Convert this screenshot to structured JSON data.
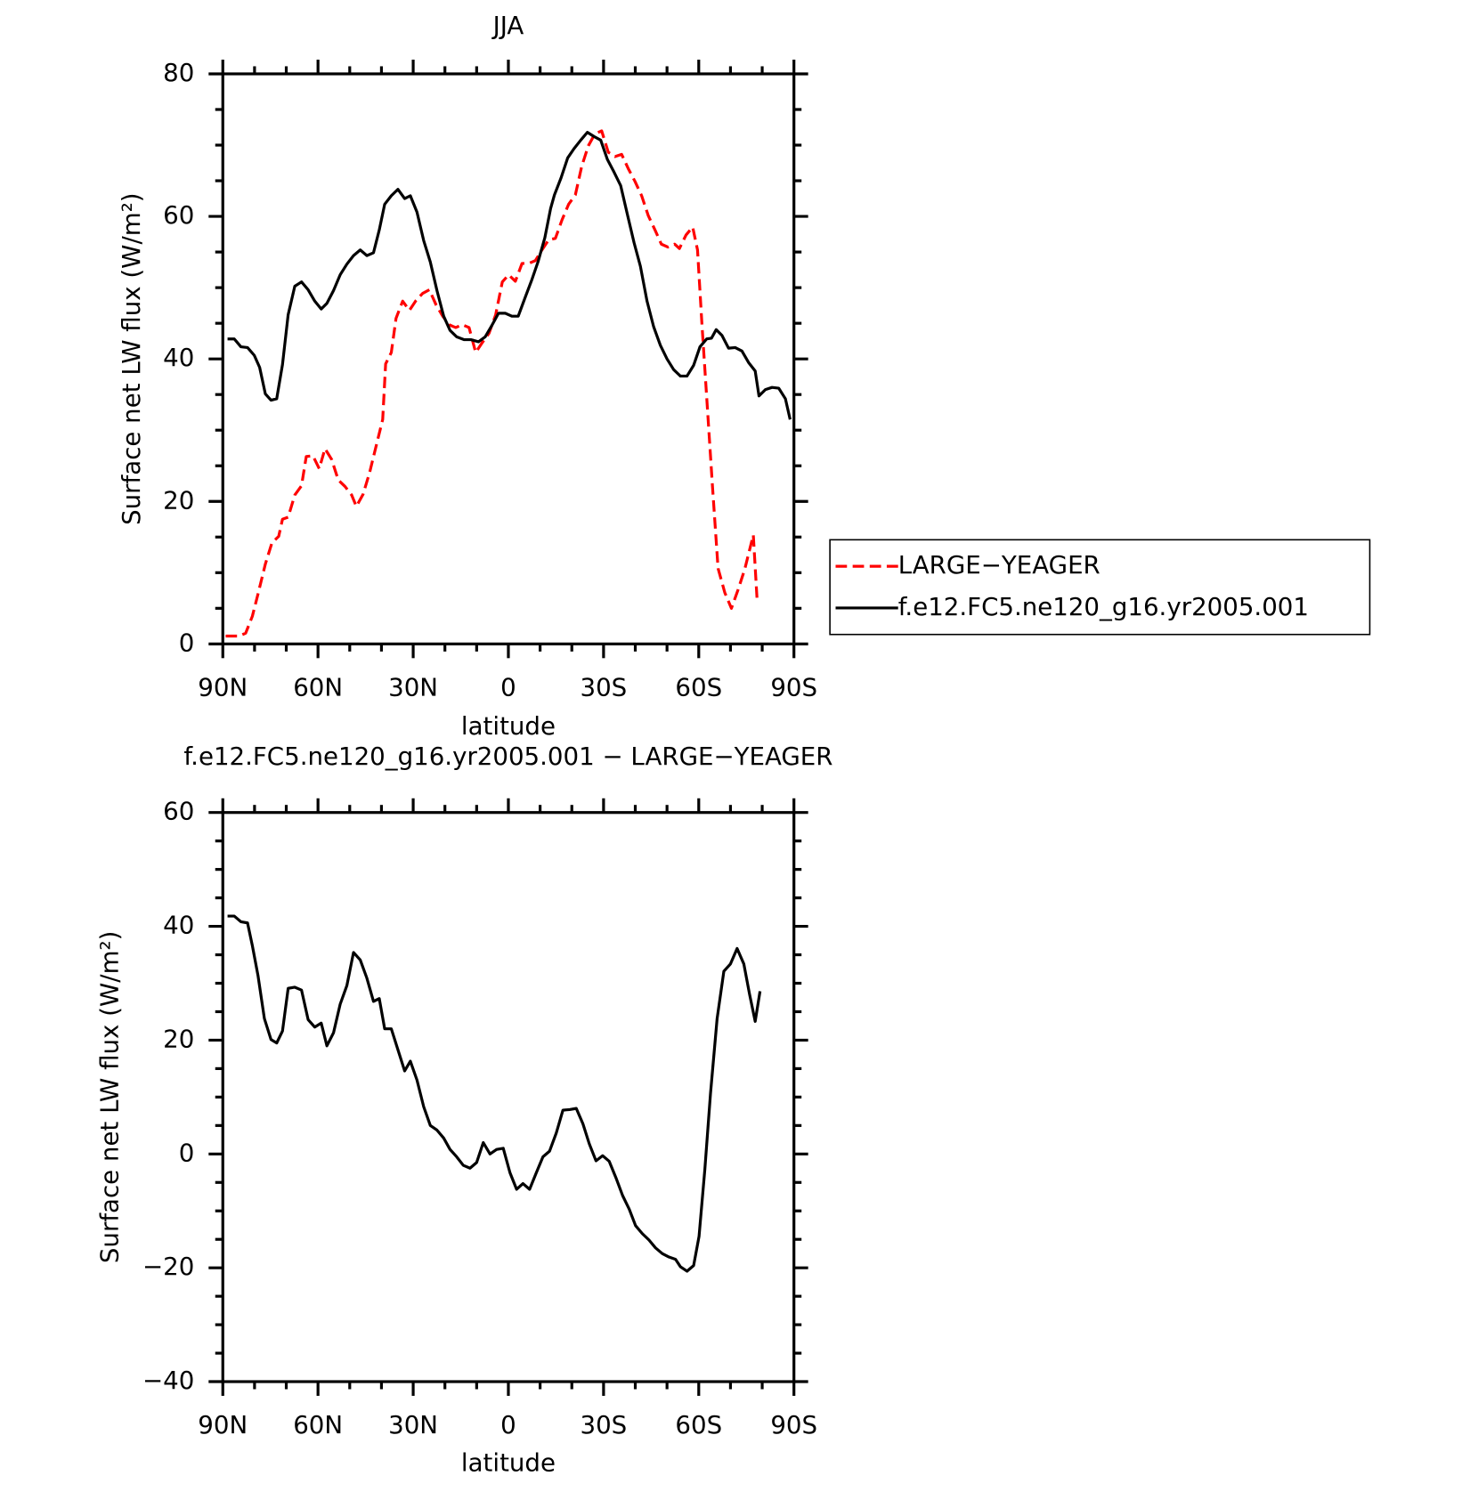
{
  "chart_data": [
    {
      "type": "line",
      "title": "JJA",
      "xlabel": "latitude",
      "ylabel": "Surface net LW flux (W/m²)",
      "xlim": [
        90,
        -90
      ],
      "xticks": [
        {
          "value": 90,
          "label": "90N"
        },
        {
          "value": 60,
          "label": "60N"
        },
        {
          "value": 30,
          "label": "30N"
        },
        0,
        {
          "value": -30,
          "label": "30S"
        },
        {
          "value": -60,
          "label": "60S"
        },
        {
          "value": -90,
          "label": "90S"
        }
      ],
      "ylim": [
        0,
        80
      ],
      "yticks": [
        0,
        20,
        40,
        60,
        80
      ],
      "legend": "right",
      "series": [
        {
          "name": "LARGE−YEAGER",
          "color": "#ff0000",
          "linestyle": "dashed",
          "x": [
            89.1,
            87,
            84.9,
            82.8,
            80.7,
            78.7,
            76.6,
            74.5,
            72.4,
            71.2,
            69.4,
            67.3,
            65.2,
            63.7,
            61.6,
            59.6,
            57.8,
            55.7,
            53.6,
            51.5,
            49.4,
            47.9,
            45.8,
            43.7,
            41.6,
            39.6,
            38.7,
            36.9,
            35.4,
            33.3,
            31.2,
            29.1,
            27,
            24.9,
            22.8,
            20.7,
            18.7,
            16.6,
            14.5,
            12.4,
            10.3,
            8.2,
            6.1,
            4,
            1.9,
            -0.1,
            -2.2,
            -4.3,
            -6.4,
            -8.5,
            -10.6,
            -12.7,
            -14.8,
            -16.9,
            -19,
            -21.1,
            -23.1,
            -25.2,
            -27.3,
            -29.4,
            -31.5,
            -33.6,
            -35.7,
            -37.8,
            -39.9,
            -42,
            -44.1,
            -46.2,
            -48.2,
            -50.3,
            -52.4,
            -53.9,
            -56,
            -58.1,
            -59.6,
            -61,
            -62.5,
            -64.3,
            -66.1,
            -68.2,
            -70.3,
            -72.4,
            -74.5,
            -77.2,
            -78.4
          ],
          "values": [
            1.1,
            1.1,
            1.1,
            1.5,
            3.9,
            7.4,
            11.2,
            14.2,
            15.1,
            17.5,
            17.8,
            20.9,
            22.2,
            26.3,
            26.4,
            24.6,
            27.4,
            25.9,
            23,
            22.1,
            20.9,
            19.3,
            21,
            24.1,
            27.9,
            31.5,
            39.3,
            40.9,
            45.7,
            48.1,
            46.8,
            48.2,
            49.2,
            49.7,
            47.6,
            46,
            44.8,
            44.4,
            44.8,
            44.4,
            40.9,
            42.3,
            43.6,
            46.2,
            50.8,
            51.8,
            50.9,
            53.4,
            53.4,
            53.8,
            55.3,
            56.7,
            56.9,
            59.5,
            61.7,
            63,
            67,
            69.9,
            71.6,
            72,
            69,
            68.4,
            68.7,
            66.7,
            64.9,
            62.9,
            60.1,
            58.1,
            56.1,
            55.7,
            56.1,
            55.5,
            57.4,
            58.5,
            55.3,
            44.8,
            34.6,
            22.3,
            10.6,
            7.2,
            5,
            7.6,
            10.5,
            15.3,
            6.2
          ]
        },
        {
          "name": "f.e12.FC5.ne120_g16.yr2005.001",
          "color": "#000000",
          "linestyle": "solid",
          "x": [
            88.5,
            86.4,
            84.3,
            82.2,
            80.1,
            78.4,
            76.6,
            74.8,
            73,
            71.2,
            69.4,
            67.3,
            65.2,
            63.1,
            61,
            59,
            57.2,
            55.1,
            53,
            50.9,
            48.8,
            46.7,
            44.6,
            42.5,
            40.7,
            39,
            36.9,
            34.8,
            32.7,
            30.9,
            28.8,
            26.7,
            24.6,
            22.5,
            20.4,
            18.4,
            16.3,
            13.9,
            11.8,
            9.4,
            7.3,
            5.2,
            3.1,
            1,
            -1.1,
            -3.1,
            -5.2,
            -7.3,
            -9.4,
            -11.5,
            -13.3,
            -14.5,
            -16.6,
            -18.7,
            -20.7,
            -22.8,
            -24.9,
            -27,
            -29.1,
            -31.2,
            -33.3,
            -35.4,
            -37.5,
            -39.6,
            -41.6,
            -43.7,
            -45.8,
            -47.9,
            -50,
            -52.1,
            -54.2,
            -56.3,
            -58.4,
            -60.4,
            -62.5,
            -64,
            -65.5,
            -67.3,
            -69.4,
            -71.5,
            -73.6,
            -75.7,
            -77.8,
            -79,
            -81,
            -83.1,
            -85.2,
            -87.3,
            -88.8
          ],
          "values": [
            42.8,
            42.8,
            41.7,
            41.6,
            40.5,
            38.8,
            35.1,
            34.2,
            34.4,
            39.2,
            46.2,
            50.2,
            50.8,
            49.7,
            48.1,
            47,
            47.8,
            49.6,
            51.8,
            53.3,
            54.5,
            55.3,
            54.5,
            54.9,
            58.1,
            61.7,
            62.9,
            63.8,
            62.5,
            62.9,
            60.6,
            56.6,
            53.6,
            49.6,
            46,
            44,
            43.1,
            42.7,
            42.7,
            42.4,
            43.1,
            44.7,
            46.4,
            46.4,
            46,
            46,
            48.5,
            51,
            53.7,
            57,
            61.1,
            63,
            65.4,
            68.2,
            69.5,
            70.7,
            71.8,
            71.2,
            70.7,
            68,
            66.2,
            64.3,
            60.3,
            56.3,
            53,
            48.1,
            44.5,
            41.9,
            40,
            38.5,
            37.6,
            37.6,
            39.1,
            41.7,
            42.8,
            42.9,
            44.1,
            43.3,
            41.5,
            41.6,
            41.1,
            39.5,
            38.3,
            34.8,
            35.7,
            36,
            35.9,
            34.4,
            31.5
          ]
        }
      ]
    },
    {
      "type": "line",
      "title": "f.e12.FC5.ne120_g16.yr2005.001 − LARGE−YEAGER",
      "xlabel": "latitude",
      "ylabel": "Surface net LW flux (W/m²)",
      "xlim": [
        90,
        -90
      ],
      "xticks": [
        {
          "value": 90,
          "label": "90N"
        },
        {
          "value": 60,
          "label": "60N"
        },
        {
          "value": 30,
          "label": "30N"
        },
        0,
        {
          "value": -30,
          "label": "30S"
        },
        {
          "value": -60,
          "label": "60S"
        },
        {
          "value": -90,
          "label": "90S"
        }
      ],
      "ylim": [
        -40,
        60
      ],
      "yticks": [
        {
          "value": -40,
          "label": "−40"
        },
        {
          "value": -20,
          "label": "−20"
        },
        0,
        20,
        40,
        60
      ],
      "color": "#000000",
      "x": [
        88.5,
        86.4,
        84.3,
        82.2,
        80.7,
        78.9,
        76.9,
        74.8,
        73,
        71.2,
        69.4,
        67.3,
        65.2,
        63.1,
        61,
        59,
        57.2,
        55.1,
        53,
        50.9,
        48.8,
        46.7,
        44.6,
        42.5,
        40.7,
        39,
        36.9,
        34.8,
        32.7,
        30.9,
        28.8,
        26.7,
        24.6,
        22.5,
        20.4,
        18.4,
        16.3,
        14.2,
        12.1,
        10,
        7.9,
        5.8,
        3.7,
        1.6,
        -0.5,
        -2.6,
        -4.6,
        -6.7,
        -8.8,
        -10.9,
        -13,
        -15.1,
        -17.2,
        -19.3,
        -21.4,
        -23.5,
        -25.5,
        -27.6,
        -29.7,
        -31.8,
        -33.9,
        -36,
        -38.1,
        -40.1,
        -42.2,
        -44.3,
        -46.4,
        -48.5,
        -50.6,
        -52.7,
        -54.2,
        -56.3,
        -58.4,
        -60.1,
        -61.9,
        -63.7,
        -65.8,
        -67.9,
        -70,
        -72.1,
        -74.2,
        -76,
        -77.8,
        -79.3
      ],
      "values": [
        41.8,
        41.8,
        40.8,
        40.6,
        36.6,
        31.3,
        23.8,
        20.1,
        19.5,
        21.6,
        29.1,
        29.3,
        28.8,
        23.6,
        22.3,
        23,
        19,
        21.3,
        26.3,
        29.6,
        35.4,
        34.1,
        30.9,
        26.8,
        27.3,
        22,
        22,
        18.3,
        14.6,
        16.3,
        13,
        8.3,
        5,
        4.2,
        2.8,
        0.8,
        -0.5,
        -2,
        -2.5,
        -1.5,
        2,
        0,
        0.8,
        1,
        -3.3,
        -6.2,
        -5.2,
        -6.2,
        -3.3,
        -0.5,
        0.5,
        3.7,
        7.7,
        7.8,
        8,
        5.3,
        1.8,
        -1.2,
        -0.3,
        -1.3,
        -4.2,
        -7.3,
        -9.7,
        -12.6,
        -14,
        -15.1,
        -16.5,
        -17.5,
        -18.1,
        -18.5,
        -19.8,
        -20.6,
        -19.6,
        -14.5,
        -2.8,
        10.6,
        23.8,
        32.1,
        33.4,
        36.1,
        33.4,
        28.1,
        23.3,
        28.6
      ]
    }
  ]
}
